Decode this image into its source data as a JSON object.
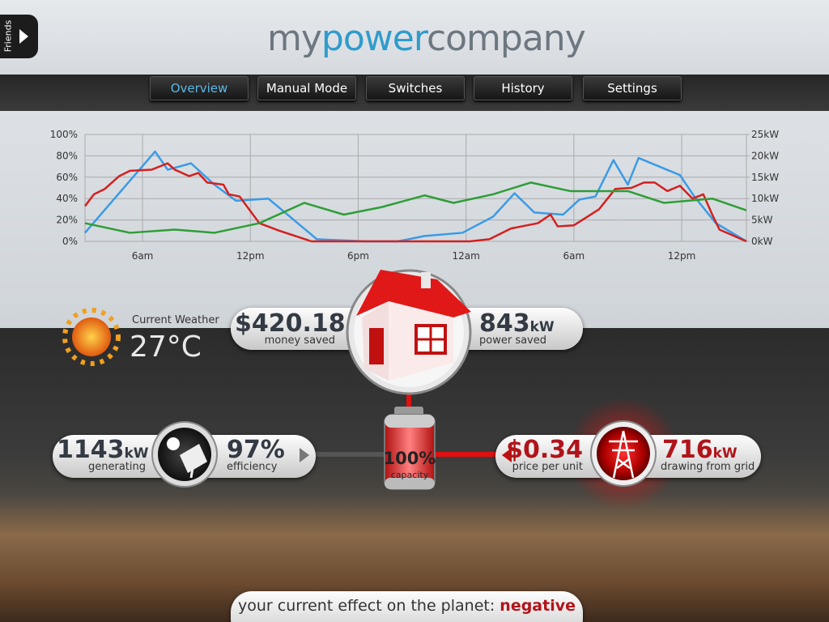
{
  "friends_tab": "Friends",
  "logo": [
    "my",
    "power",
    "company"
  ],
  "nav": {
    "tabs": [
      "Overview",
      "Manual Mode",
      "Switches",
      "History",
      "Settings"
    ],
    "active": 0
  },
  "chart_data": {
    "type": "line",
    "xlim": [
      2.8,
      39.6
    ],
    "xticks": [
      {
        "value": 6,
        "label": "6am"
      },
      {
        "value": 12,
        "label": "12pm"
      },
      {
        "value": 18,
        "label": "6pm"
      },
      {
        "value": 24,
        "label": "12am"
      },
      {
        "value": 30,
        "label": "6am"
      },
      {
        "value": 36,
        "label": "12pm"
      }
    ],
    "ylim": [
      0,
      100
    ],
    "yticks": [
      {
        "value": 0,
        "label": "0%"
      },
      {
        "value": 20,
        "label": "20%"
      },
      {
        "value": 40,
        "label": "40%"
      },
      {
        "value": 60,
        "label": "60%"
      },
      {
        "value": 80,
        "label": "80%"
      },
      {
        "value": 100,
        "label": "100%"
      }
    ],
    "y2lim": [
      0,
      25
    ],
    "y2ticks": [
      {
        "value": 0,
        "label": "0kW"
      },
      {
        "value": 5,
        "label": "5kW"
      },
      {
        "value": 10,
        "label": "10kW"
      },
      {
        "value": 15,
        "label": "15kW"
      },
      {
        "value": 20,
        "label": "20kW"
      },
      {
        "value": 25,
        "label": "25kW"
      }
    ],
    "grid": true,
    "series": [
      {
        "color": "#3a9be6",
        "x": [
          2.8,
          6.7,
          7.4,
          8.7,
          10,
          11.2,
          13,
          15.7,
          18.4,
          20.2,
          21.7,
          23.8,
          25.5,
          26.7,
          27.8,
          29.4,
          30.3,
          31.2,
          32.2,
          33,
          33.6,
          35.9,
          36.7,
          37.9,
          39.6
        ],
        "values": [
          8,
          84,
          67,
          73,
          53,
          38,
          40,
          2,
          0,
          0,
          5,
          8,
          23,
          45,
          27,
          25,
          39,
          42,
          76,
          53,
          78,
          62,
          42,
          17,
          0
        ]
      },
      {
        "color": "#d42020",
        "x": [
          2.8,
          3.3,
          3.9,
          4.7,
          5.3,
          6.5,
          7.4,
          7.8,
          8.6,
          9.1,
          9.6,
          10.5,
          10.8,
          11.4,
          12.5,
          13.6,
          15.4,
          24.2,
          25.3,
          26.5,
          28,
          28.7,
          29.1,
          30,
          31.4,
          32.3,
          33.2,
          33.9,
          34.5,
          35.2,
          35.9,
          36.6,
          37.2,
          37.7,
          38.1,
          39.6
        ],
        "values": [
          33,
          44,
          49,
          61,
          66,
          67,
          73,
          67,
          61,
          64,
          55,
          53,
          44,
          42,
          17,
          10,
          0,
          0,
          2,
          12,
          17,
          25,
          14,
          15,
          30,
          49,
          50,
          55,
          55,
          47,
          52,
          40,
          44,
          25,
          11,
          0
        ]
      },
      {
        "color": "#2e9e36",
        "x": [
          2.8,
          5.3,
          7.8,
          10,
          12.5,
          15,
          17.2,
          19.3,
          21.7,
          23.3,
          25.5,
          27.6,
          29.8,
          33,
          35,
          37.7,
          39.6
        ],
        "values": [
          17,
          8,
          11,
          8,
          17,
          36,
          25,
          32,
          43,
          36,
          44,
          55,
          47,
          47,
          36,
          40,
          29
        ]
      }
    ]
  },
  "weather": {
    "label": "Current Weather",
    "temperature": "27°C"
  },
  "home": {
    "money": {
      "value": "$420.18",
      "label": "money saved"
    },
    "power": {
      "value": "843",
      "unit": "kW",
      "label": "power saved"
    }
  },
  "generation": {
    "power": {
      "value": "1143",
      "unit": "kW",
      "label": "generating"
    },
    "efficiency": {
      "value": "97%",
      "label": "efficiency"
    }
  },
  "battery": {
    "value": "100%",
    "label": "capacity"
  },
  "grid": {
    "price": {
      "value": "$0.34",
      "label": "price per unit"
    },
    "power": {
      "value": "716",
      "unit": "kW",
      "label": "drawing from grid"
    }
  },
  "footer": {
    "text": "your current effect on the planet:",
    "status": "negative"
  }
}
